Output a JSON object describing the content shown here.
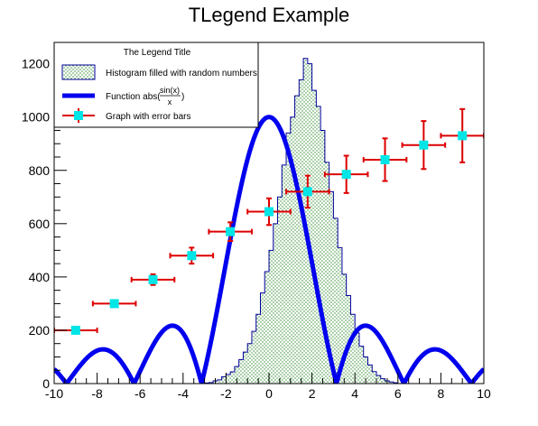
{
  "chart_data": {
    "type": "mixed",
    "title": "TLegend Example",
    "xlim": [
      -10,
      10
    ],
    "ylim": [
      0,
      1280
    ],
    "x_ticks": [
      -10,
      -8,
      -6,
      -4,
      -2,
      0,
      2,
      4,
      6,
      8,
      10
    ],
    "y_ticks": [
      0,
      200,
      400,
      600,
      800,
      1000,
      1200
    ],
    "grid": false,
    "legend": {
      "position": "top-left",
      "title": "The Legend Title",
      "entries": [
        {
          "label": "Histogram filled with random numbers",
          "kind": "fill"
        },
        {
          "label_prefix": "Function abs(",
          "label_num": "sin(x)",
          "label_den": "x",
          "label_suffix": ")",
          "kind": "line"
        },
        {
          "label": "Graph with error bars",
          "kind": "marker"
        }
      ]
    },
    "histogram": {
      "name": "Histogram filled with random numbers",
      "bin_edges_start": -10,
      "bin_width": 0.2,
      "nbins": 100,
      "counts": [
        0,
        0,
        0,
        0,
        0,
        0,
        0,
        0,
        0,
        0,
        0,
        0,
        0,
        0,
        0,
        0,
        0,
        0,
        0,
        0,
        0,
        0,
        0,
        0,
        0,
        0,
        0,
        0,
        0,
        0,
        0,
        0,
        0,
        0,
        0,
        2,
        4,
        10,
        14,
        26,
        34,
        44,
        64,
        90,
        118,
        150,
        196,
        260,
        340,
        420,
        500,
        600,
        700,
        820,
        940,
        1000,
        1080,
        1140,
        1220,
        1200,
        1100,
        1040,
        950,
        830,
        720,
        620,
        510,
        410,
        330,
        260,
        190,
        140,
        100,
        70,
        45,
        30,
        18,
        10,
        6,
        3,
        0,
        0,
        0,
        0,
        0,
        0,
        0,
        0,
        0,
        0,
        0,
        0,
        0,
        0,
        0,
        0,
        0,
        0,
        0,
        0
      ],
      "fill_color": "#2e8b2e",
      "line_color": "#000099"
    },
    "function": {
      "name": "Function abs(sin(x)/x)",
      "formula": "1000*abs(sin(x)/x)",
      "color": "#0000ee"
    },
    "graph": {
      "name": "Graph with error bars",
      "marker_color": "#00e5e5",
      "error_color": "#dd0000",
      "points": [
        {
          "x": -9.0,
          "y": 200,
          "ex": 1.0,
          "ey": 0
        },
        {
          "x": -7.2,
          "y": 300,
          "ex": 1.0,
          "ey": 0
        },
        {
          "x": -5.4,
          "y": 390,
          "ex": 1.0,
          "ey": 20
        },
        {
          "x": -3.6,
          "y": 480,
          "ex": 1.0,
          "ey": 30
        },
        {
          "x": -1.8,
          "y": 570,
          "ex": 1.0,
          "ey": 35
        },
        {
          "x": 0.0,
          "y": 645,
          "ex": 1.0,
          "ey": 50
        },
        {
          "x": 1.8,
          "y": 720,
          "ex": 1.0,
          "ey": 60
        },
        {
          "x": 3.6,
          "y": 785,
          "ex": 1.0,
          "ey": 70
        },
        {
          "x": 5.4,
          "y": 840,
          "ex": 1.0,
          "ey": 80
        },
        {
          "x": 7.2,
          "y": 895,
          "ex": 1.0,
          "ey": 90
        },
        {
          "x": 9.0,
          "y": 930,
          "ex": 1.0,
          "ey": 100
        }
      ]
    }
  }
}
